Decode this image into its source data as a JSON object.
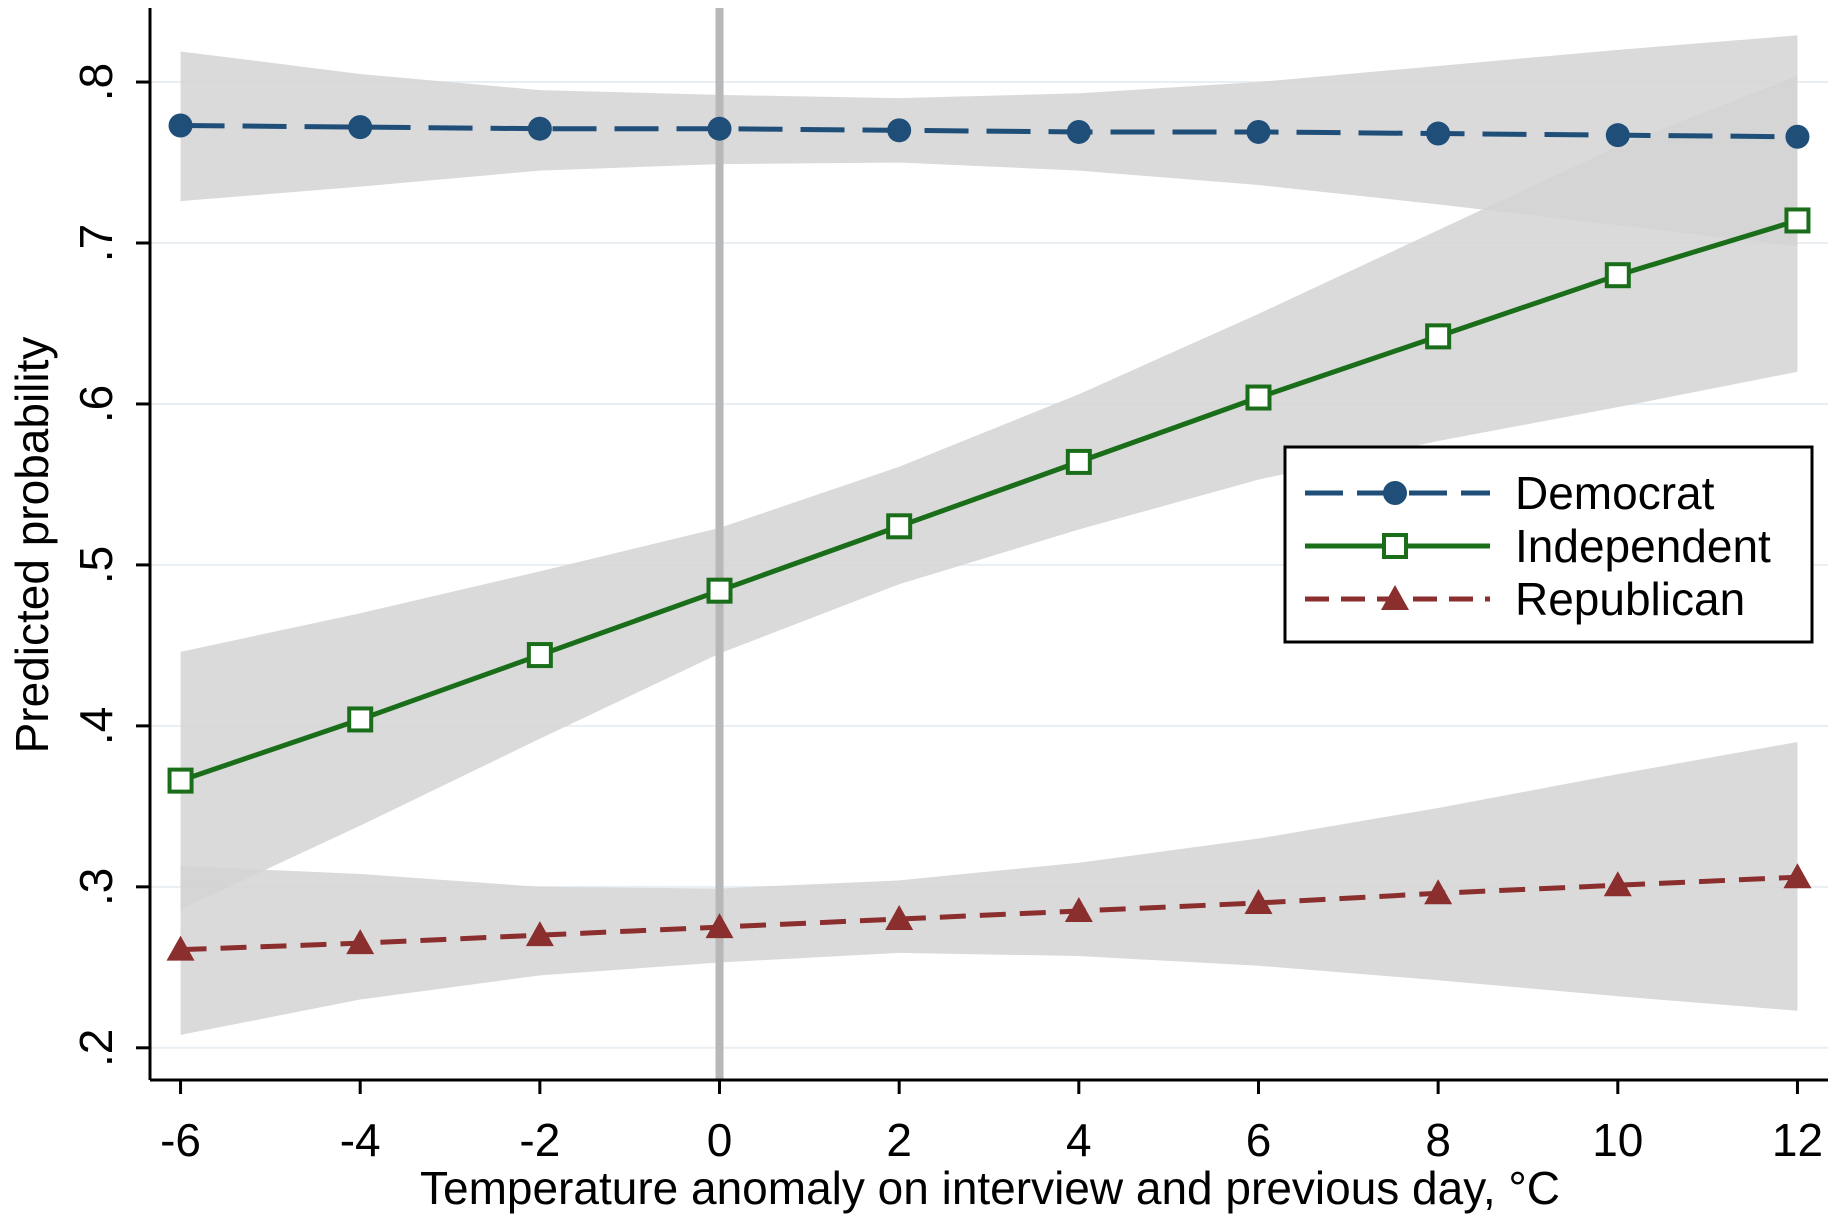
{
  "chart_data": {
    "type": "line",
    "title": "",
    "xlabel": "Temperature anomaly on interview and previous day, °C",
    "ylabel": "Predicted probability",
    "x": [
      -6,
      -4,
      -2,
      0,
      2,
      4,
      6,
      8,
      10,
      12
    ],
    "x_ticks": [
      "-6",
      "-4",
      "-2",
      "0",
      "2",
      "4",
      "6",
      "8",
      "10",
      "12"
    ],
    "y_ticks": [
      ".2",
      ".3",
      ".4",
      ".5",
      ".6",
      ".7",
      ".8"
    ],
    "xlim": [
      -6.34,
      12.34
    ],
    "ylim": [
      0.18,
      0.846
    ],
    "grid": true,
    "reference_line_x": 0,
    "legend_position": "right",
    "series": [
      {
        "name": "Democrat",
        "color": "#1f4e79",
        "marker": "circle",
        "line": "long-dash",
        "values": [
          0.773,
          0.772,
          0.771,
          0.771,
          0.77,
          0.769,
          0.769,
          0.768,
          0.767,
          0.766
        ],
        "ci_lower": [
          0.726,
          0.735,
          0.745,
          0.749,
          0.75,
          0.745,
          0.736,
          0.724,
          0.711,
          0.698
        ],
        "ci_upper": [
          0.819,
          0.805,
          0.795,
          0.792,
          0.79,
          0.793,
          0.8,
          0.81,
          0.82,
          0.829
        ]
      },
      {
        "name": "Independent",
        "color": "#1a6e1a",
        "marker": "hollow-square",
        "line": "solid",
        "values": [
          0.366,
          0.404,
          0.444,
          0.484,
          0.524,
          0.564,
          0.604,
          0.642,
          0.68,
          0.714
        ],
        "ci_lower": [
          0.286,
          0.338,
          0.392,
          0.445,
          0.488,
          0.522,
          0.553,
          0.577,
          0.598,
          0.62
        ],
        "ci_upper": [
          0.446,
          0.47,
          0.496,
          0.523,
          0.561,
          0.606,
          0.656,
          0.708,
          0.76,
          0.804
        ]
      },
      {
        "name": "Republican",
        "color": "#8b2e2e",
        "marker": "triangle",
        "line": "short-dash",
        "values": [
          0.261,
          0.265,
          0.27,
          0.275,
          0.28,
          0.285,
          0.29,
          0.296,
          0.301,
          0.306
        ],
        "ci_lower": [
          0.208,
          0.23,
          0.245,
          0.253,
          0.259,
          0.257,
          0.251,
          0.242,
          0.232,
          0.223
        ],
        "ci_upper": [
          0.313,
          0.308,
          0.3,
          0.299,
          0.304,
          0.315,
          0.33,
          0.349,
          0.37,
          0.39
        ]
      }
    ],
    "colors": {
      "ci_band": "#d4d4d4",
      "gridline": "#e8eef2",
      "reference_line": "#b8b8b8"
    }
  }
}
